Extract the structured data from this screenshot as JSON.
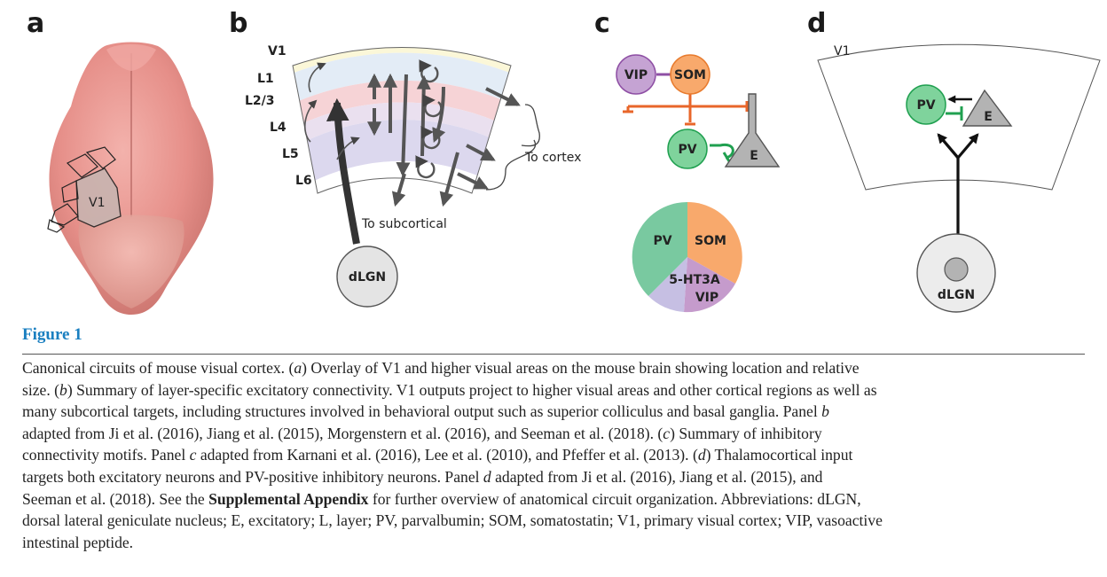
{
  "panels": {
    "a": {
      "letter": "a",
      "region_label": "V1"
    },
    "b": {
      "letter": "b",
      "layers": [
        "V1",
        "L1",
        "L2/3",
        "L4",
        "L5",
        "L6"
      ],
      "to_cortex": "To cortex",
      "to_subcortical": "To subcortical",
      "source": "dLGN"
    },
    "c": {
      "letter": "c",
      "nodes": {
        "vip": "VIP",
        "som": "SOM",
        "pv": "PV",
        "e": "E"
      },
      "pie": {
        "labels": {
          "pv": "PV",
          "som": "SOM",
          "ht3a": "5-HT3A",
          "vip": "VIP"
        },
        "colors": {
          "pv": "#79c9a0",
          "som": "#f8a96c",
          "ht3a": "#c6bfe3",
          "vip": "#c59bcc"
        }
      }
    },
    "d": {
      "letter": "d",
      "area": "V1",
      "pv": "PV",
      "e": "E",
      "source": "dLGN"
    }
  },
  "colors": {
    "vip": "#c5a3d3",
    "som": "#f8a96c",
    "pv": "#7fd39c",
    "pv_stroke": "#20a050",
    "inhibitory_line": "#e8662a",
    "excitatory_fill": "#b3b3b3",
    "caption_title": "#1a7fc0",
    "layer_l1": "#fbf7d8",
    "layer_l23": "#e3ecf6",
    "layer_l4": "#f6d3d6",
    "layer_l5": "#eae0ef",
    "layer_l6": "#dcd8ee"
  },
  "caption": {
    "title": "Figure 1",
    "lines": [
      [
        "Canonical circuits of mouse visual cortex. (",
        "a",
        ") Overlay of V1 and higher visual areas on the mouse brain showing location and relative"
      ],
      [
        "size. (",
        "b",
        ") Summary of layer-specific excitatory connectivity. V1 outputs project to higher visual areas and other cortical regions as well as"
      ],
      [
        "many subcortical targets, including structures involved in behavioral output such as superior colliculus and basal ganglia. Panel ",
        "b",
        ""
      ],
      [
        "adapted from Ji et al. (2016), Jiang et al. (2015), Morgenstern et al. (2016), and Seeman et al. (2018). (",
        "c",
        ") Summary of inhibitory"
      ],
      [
        "connectivity motifs. Panel ",
        "c",
        " adapted from Karnani et al. (2016), Lee et al. (2010), and Pfeffer et al. (2013). (",
        "d",
        ") Thalamocortical input"
      ],
      [
        "targets both excitatory neurons and PV-positive inhibitory neurons. Panel ",
        "d",
        " adapted from Ji et al. (2016), Jiang et al. (2015), and"
      ],
      [
        "Seeman et al. (2018). See the ",
        "Supplemental Appendix",
        " for further overview of anatomical circuit organization. Abbreviations: dLGN,"
      ],
      [
        "dorsal lateral geniculate nucleus; E, excitatory; L, layer; PV, parvalbumin; SOM, somatostatin; V1, primary visual cortex; VIP, vasoactive"
      ],
      [
        "intestinal peptide."
      ]
    ]
  }
}
